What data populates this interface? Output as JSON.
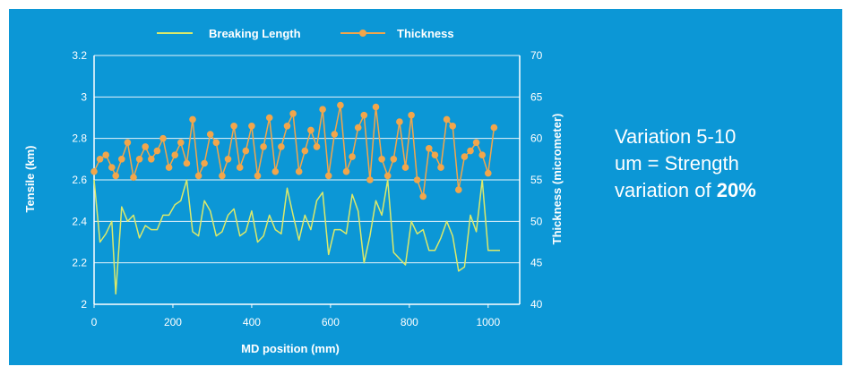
{
  "colors": {
    "background": "#0c97d6",
    "breaking_length": "#dbe96a",
    "thickness": "#f2a64b",
    "axis": "#ffffff"
  },
  "annotation": {
    "line1": "Variation 5-10",
    "line2": "um = Strength",
    "line3_prefix": "variation of ",
    "line3_bold": "20%"
  },
  "chart_data": {
    "type": "line",
    "title": "",
    "xlabel": "MD position (mm)",
    "ylabel": "Tensile (km)",
    "y2label": "Thickness (micrometer)",
    "xlim": [
      0,
      1080
    ],
    "ylim": [
      2,
      3.2
    ],
    "y2lim": [
      40,
      70
    ],
    "xticks": [
      "0",
      "200",
      "400",
      "600",
      "800",
      "1000"
    ],
    "xtick_values": [
      0,
      200,
      400,
      600,
      800,
      1000
    ],
    "yticks": [
      "2",
      "2.2",
      "2.4",
      "2.6",
      "2.8",
      "3",
      "3.2"
    ],
    "ytick_values": [
      2,
      2.2,
      2.4,
      2.6,
      2.8,
      3,
      3.2
    ],
    "y2ticks": [
      "40",
      "45",
      "50",
      "55",
      "60",
      "65",
      "70"
    ],
    "y2tick_values": [
      40,
      45,
      50,
      55,
      60,
      65,
      70
    ],
    "grid": true,
    "legend_position": "top-center",
    "series": [
      {
        "name": "Breaking Length",
        "axis": "left",
        "markers": false,
        "x": [
          0,
          15,
          30,
          45,
          55,
          70,
          85,
          100,
          115,
          130,
          145,
          160,
          175,
          190,
          205,
          220,
          235,
          250,
          265,
          280,
          295,
          310,
          325,
          340,
          355,
          370,
          385,
          400,
          415,
          430,
          445,
          460,
          475,
          490,
          505,
          520,
          535,
          550,
          565,
          580,
          595,
          610,
          625,
          640,
          655,
          670,
          685,
          700,
          715,
          730,
          745,
          760,
          775,
          790,
          805,
          820,
          835,
          850,
          865,
          880,
          895,
          910,
          925,
          940,
          955,
          970,
          985,
          1000,
          1015,
          1030
        ],
        "values": [
          2.6,
          2.3,
          2.34,
          2.4,
          2.05,
          2.47,
          2.4,
          2.43,
          2.32,
          2.38,
          2.36,
          2.36,
          2.43,
          2.43,
          2.48,
          2.5,
          2.6,
          2.35,
          2.33,
          2.5,
          2.45,
          2.33,
          2.35,
          2.43,
          2.46,
          2.33,
          2.35,
          2.45,
          2.3,
          2.33,
          2.43,
          2.36,
          2.34,
          2.56,
          2.43,
          2.31,
          2.43,
          2.36,
          2.5,
          2.54,
          2.24,
          2.36,
          2.36,
          2.34,
          2.53,
          2.45,
          2.2,
          2.33,
          2.5,
          2.43,
          2.6,
          2.25,
          2.22,
          2.19,
          2.4,
          2.34,
          2.36,
          2.26,
          2.26,
          2.32,
          2.4,
          2.33,
          2.16,
          2.18,
          2.43,
          2.35,
          2.6,
          2.26,
          2.26,
          2.26
        ]
      },
      {
        "name": "Thickness",
        "axis": "right",
        "markers": true,
        "x": [
          0,
          15,
          30,
          45,
          55,
          70,
          85,
          100,
          115,
          130,
          145,
          160,
          175,
          190,
          205,
          220,
          235,
          250,
          265,
          280,
          295,
          310,
          325,
          340,
          355,
          370,
          385,
          400,
          415,
          430,
          445,
          460,
          475,
          490,
          505,
          520,
          535,
          550,
          565,
          580,
          595,
          610,
          625,
          640,
          655,
          670,
          685,
          700,
          715,
          730,
          745,
          760,
          775,
          790,
          805,
          820,
          835,
          850,
          865,
          880,
          895,
          910,
          925,
          940,
          955,
          970,
          985,
          1000,
          1015
        ],
        "values": [
          56,
          57.5,
          58,
          56.5,
          55.5,
          57.5,
          59.5,
          55.3,
          57.5,
          59,
          57.5,
          58.5,
          60,
          56.5,
          58,
          59.5,
          57,
          62.3,
          55.5,
          57,
          60.5,
          59.5,
          55.5,
          57.5,
          61.5,
          56.5,
          58.5,
          61.5,
          55.5,
          59,
          62.5,
          56,
          59,
          61.5,
          63,
          56,
          58.5,
          61,
          59,
          63.5,
          55.5,
          60.5,
          64,
          56,
          57.8,
          61.3,
          62.8,
          55,
          63.8,
          57.5,
          55.5,
          57.5,
          62,
          56.5,
          62.8,
          55,
          53,
          58.8,
          58,
          56.5,
          62.3,
          61.5,
          53.8,
          57.8,
          58.5,
          59.5,
          58,
          55.8,
          61.3
        ]
      }
    ]
  }
}
